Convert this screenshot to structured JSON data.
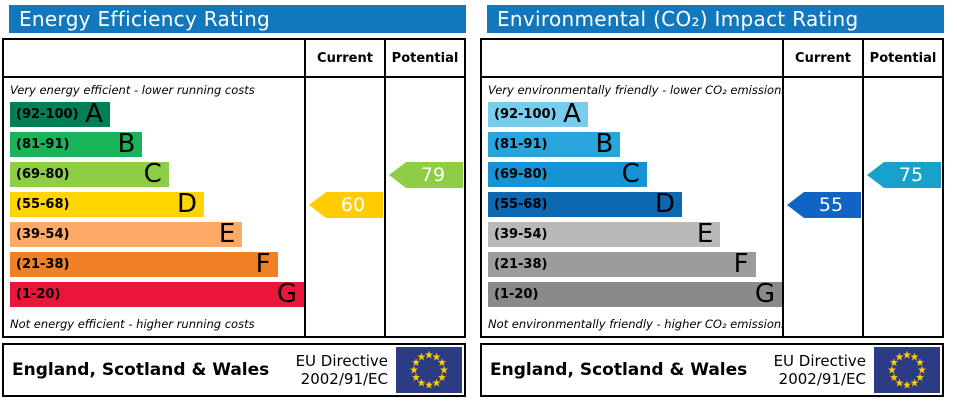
{
  "theme": {
    "header_bg": "#1178be",
    "border": "#000000",
    "eu_flag_bg": "#2b3b84",
    "eu_star": "#ffcc00"
  },
  "chart_data": [
    {
      "type": "bar",
      "title": "Energy Efficiency Rating",
      "columns": {
        "current": "Current",
        "potential": "Potential"
      },
      "top_note": "Very energy efficient - lower running costs",
      "bottom_note": "Not energy efficient - higher running costs",
      "bands": [
        {
          "letter": "A",
          "label": "(92-100)",
          "range": [
            92,
            100
          ],
          "color": "#008054",
          "width_pct": 34
        },
        {
          "letter": "B",
          "label": "(81-91)",
          "range": [
            81,
            91
          ],
          "color": "#19b459",
          "width_pct": 45
        },
        {
          "letter": "C",
          "label": "(69-80)",
          "range": [
            69,
            80
          ],
          "color": "#8dce46",
          "width_pct": 54
        },
        {
          "letter": "D",
          "label": "(55-68)",
          "range": [
            55,
            68
          ],
          "color": "#ffd500",
          "width_pct": 66
        },
        {
          "letter": "E",
          "label": "(39-54)",
          "range": [
            39,
            54
          ],
          "color": "#fcaa65",
          "width_pct": 79
        },
        {
          "letter": "F",
          "label": "(21-38)",
          "range": [
            21,
            38
          ],
          "color": "#ef8023",
          "width_pct": 91
        },
        {
          "letter": "G",
          "label": "(1-20)",
          "range": [
            1,
            20
          ],
          "color": "#e9153b",
          "width_pct": 100
        }
      ],
      "current": {
        "value": 60,
        "band_letter": "D",
        "band_index": 3,
        "color": "#ffcc00"
      },
      "potential": {
        "value": 79,
        "band_letter": "C",
        "band_index": 2,
        "color": "#8dce46"
      },
      "footer": {
        "region": "England, Scotland & Wales",
        "directive_line1": "EU Directive",
        "directive_line2": "2002/91/EC"
      }
    },
    {
      "type": "bar",
      "title": "Environmental (CO₂) Impact Rating",
      "columns": {
        "current": "Current",
        "potential": "Potential"
      },
      "top_note": "Very environmentally friendly - lower CO₂ emissions",
      "bottom_note": "Not environmentally friendly - higher CO₂ emissions",
      "bands": [
        {
          "letter": "A",
          "label": "(92-100)",
          "range": [
            92,
            100
          ],
          "color": "#7accee",
          "width_pct": 34
        },
        {
          "letter": "B",
          "label": "(81-91)",
          "range": [
            81,
            91
          ],
          "color": "#28a5dc",
          "width_pct": 45
        },
        {
          "letter": "C",
          "label": "(69-80)",
          "range": [
            69,
            80
          ],
          "color": "#1593d2",
          "width_pct": 54
        },
        {
          "letter": "D",
          "label": "(55-68)",
          "range": [
            55,
            68
          ],
          "color": "#0d68b1",
          "width_pct": 66
        },
        {
          "letter": "E",
          "label": "(39-54)",
          "range": [
            39,
            54
          ],
          "color": "#b9b9b9",
          "width_pct": 79
        },
        {
          "letter": "F",
          "label": "(21-38)",
          "range": [
            21,
            38
          ],
          "color": "#9c9c9c",
          "width_pct": 91
        },
        {
          "letter": "G",
          "label": "(1-20)",
          "range": [
            1,
            20
          ],
          "color": "#8a8a8a",
          "width_pct": 100
        }
      ],
      "current": {
        "value": 55,
        "band_letter": "D",
        "band_index": 3,
        "color": "#1163c6"
      },
      "potential": {
        "value": 75,
        "band_letter": "C",
        "band_index": 2,
        "color": "#18a2cb"
      },
      "footer": {
        "region": "England, Scotland & Wales",
        "directive_line1": "EU Directive",
        "directive_line2": "2002/91/EC"
      }
    }
  ]
}
